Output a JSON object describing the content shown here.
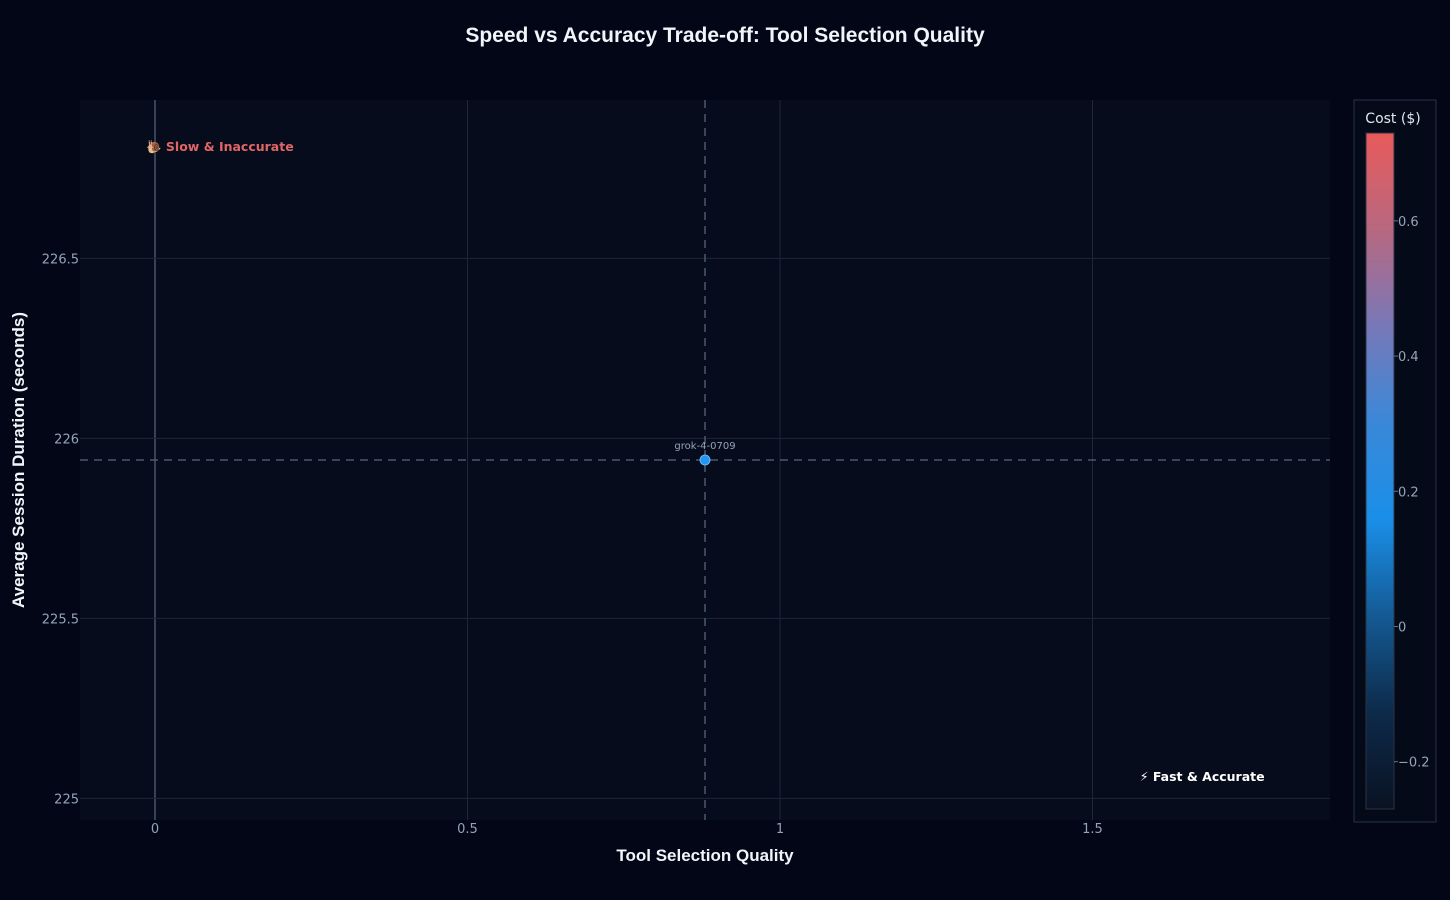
{
  "chart_data": {
    "type": "scatter",
    "title": "Speed vs Accuracy Trade-off: Tool Selection Quality",
    "xlabel": "Tool Selection Quality",
    "ylabel": "Average Session Duration (seconds)",
    "xlim": [
      -0.12,
      1.88
    ],
    "ylim": [
      224.94,
      226.94
    ],
    "xticks": [
      0,
      0.5,
      1,
      1.5
    ],
    "xtick_labels": [
      "0",
      "0.5",
      "1",
      "1.5"
    ],
    "yticks": [
      225,
      225.5,
      226,
      226.5
    ],
    "ytick_labels": [
      "225",
      "225.5",
      "226",
      "226.5"
    ],
    "grid": true,
    "points": [
      {
        "label": "grok-4-0709",
        "x": 0.88,
        "y": 225.94,
        "cost": 0.27
      }
    ],
    "reference_lines": {
      "x": 0.88,
      "y": 225.94
    },
    "annotations": [
      {
        "text": "🐌 Slow & Inaccurate",
        "x": 0,
        "y": 226.81,
        "color": "#e06666"
      },
      {
        "text": "⚡ Fast & Accurate",
        "x": 1.59,
        "y": 225.06,
        "color": "#ffffff"
      }
    ],
    "colorbar": {
      "title": "Cost ($)",
      "range": [
        -0.27,
        0.73
      ],
      "ticks": [
        -0.2,
        0,
        0.2,
        0.4,
        0.6
      ],
      "tick_labels": [
        "−0.2",
        "0",
        "0.2",
        "0.4",
        "0.6"
      ],
      "colors": [
        "#0a1222",
        "#0d2a4a",
        "#145a94",
        "#1a8fe8",
        "#3a88d8",
        "#7878b8",
        "#b86880",
        "#e85a5a"
      ]
    }
  },
  "colors": {
    "background": "#020617",
    "plot_background": "#070c1c",
    "grid": "#1e2638",
    "zero_line": "#4a5366",
    "ref_line": "#4a5a6e",
    "point": "#2196f3"
  }
}
